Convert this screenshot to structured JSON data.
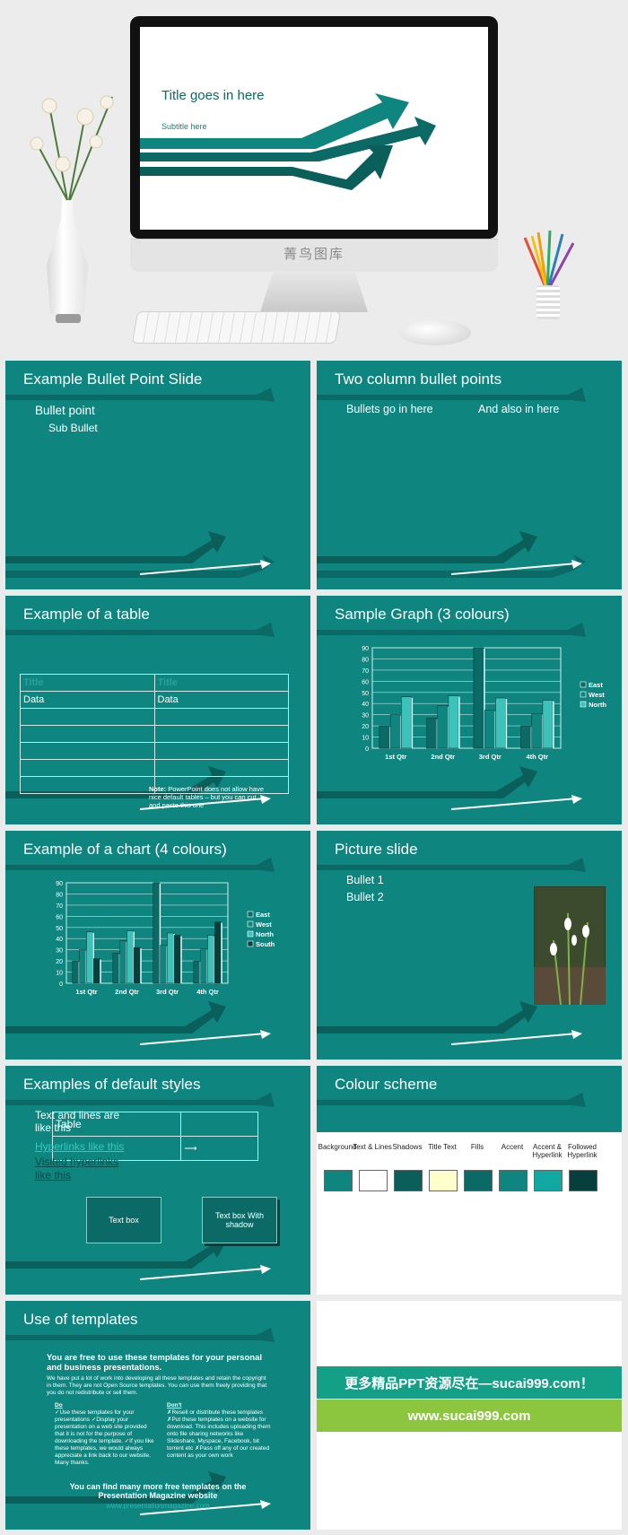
{
  "hero": {
    "screen_title": "Title goes in here",
    "screen_subtitle": "Subtitle here",
    "brand": "菁鸟图库"
  },
  "slides": {
    "s1": {
      "title": "Example Bullet Point Slide",
      "bullet": "Bullet point",
      "sub_bullet": "Sub Bullet"
    },
    "s2": {
      "title": "Two column bullet points",
      "left": "Bullets go in here",
      "right": "And also in here"
    },
    "s3": {
      "title": "Example of a table",
      "headers": [
        "Title",
        "Title"
      ],
      "rows": [
        [
          "Data",
          "Data"
        ],
        [
          "",
          ""
        ],
        [
          "",
          ""
        ],
        [
          "",
          ""
        ],
        [
          "",
          ""
        ],
        [
          "",
          ""
        ]
      ],
      "note_label": "Note:",
      "note_text": "PowerPoint does not allow have nice default tables – but you can cut and paste this one"
    },
    "s4": {
      "title": "Sample Graph (3 colours)"
    },
    "s5": {
      "title": "Example of a chart (4 colours)"
    },
    "s6": {
      "title": "Picture slide",
      "bullet1": "Bullet 1",
      "bullet2": "Bullet 2"
    },
    "s7": {
      "title": "Examples of default styles",
      "text_lines": "Text and lines are like this",
      "table_label": "Table",
      "hyperlink": "Hyperlinks like this",
      "visited": "Visited hyperlinks like this",
      "textbox": "Text box",
      "textbox_shadow": "Text box With shadow"
    },
    "s8": {
      "title": "Colour scheme",
      "labels": [
        "Background",
        "Text & Lines",
        "Shadows",
        "Title Text",
        "Fills",
        "Accent",
        "Accent & Hyperlink",
        "Followed Hyperlink"
      ],
      "colors": [
        "#0f857f",
        "#ffffff",
        "#0a5f5b",
        "#ffffcc",
        "#0b6a66",
        "#0f857f",
        "#12a8a2",
        "#063f3c"
      ]
    },
    "s9": {
      "title": "Use of templates",
      "intro": "You are free to use these templates for your personal and business presentations.",
      "body": "We have put a lot of work into developing all these templates and retain the copyright in them. They are not Open Source templates. You can use them freely providing that you do not redistribute or sell them.",
      "do_heading": "Do",
      "do_items": "✓Use these templates for your presentations ✓Display your presentation on a web site provided that it is not for the purpose of downloading the template. ✓If you like these templates, we would always appreciate a link back to our website. Many thanks.",
      "dont_heading": "Don't",
      "dont_items": "✗Resell or distribute these templates ✗Put these templates on a website for download. This includes uploading them onto file sharing networks like Slideshare, Myspace, Facebook, bit torrent etc ✗Pass off any of our created content as your own work",
      "footer": "You can find many more free templates on the Presentation Magazine website",
      "url": "www.presentationmagazine.com"
    },
    "promo": {
      "banner1": "更多精品PPT资源尽在—sucai999.com！",
      "banner2": "www.sucai999.com"
    }
  },
  "chart_data": [
    {
      "type": "bar",
      "categories": [
        "1st Qtr",
        "2nd Qtr",
        "3rd Qtr",
        "4th Qtr"
      ],
      "series": [
        {
          "name": "East",
          "values": [
            20,
            27,
            90,
            20
          ]
        },
        {
          "name": "West",
          "values": [
            30,
            38,
            34,
            31
          ]
        },
        {
          "name": "North",
          "values": [
            46,
            47,
            45,
            43
          ]
        }
      ],
      "ylim": [
        0,
        90
      ],
      "yticks": [
        0,
        10,
        20,
        30,
        40,
        50,
        60,
        70,
        80,
        90
      ],
      "colors": [
        "#0b6a66",
        "#0f857f",
        "#3cc2b8"
      ],
      "legend": "right"
    },
    {
      "type": "bar",
      "categories": [
        "1st Qtr",
        "2nd Qtr",
        "3rd Qtr",
        "4th Qtr"
      ],
      "series": [
        {
          "name": "East",
          "values": [
            20,
            27,
            90,
            20
          ]
        },
        {
          "name": "West",
          "values": [
            30,
            38,
            34,
            31
          ]
        },
        {
          "name": "North",
          "values": [
            46,
            47,
            45,
            43
          ]
        },
        {
          "name": "South",
          "values": [
            22,
            32,
            43,
            55
          ]
        }
      ],
      "ylim": [
        0,
        90
      ],
      "yticks": [
        0,
        10,
        20,
        30,
        40,
        50,
        60,
        70,
        80,
        90
      ],
      "colors": [
        "#0b6a66",
        "#0f857f",
        "#3cc2b8",
        "#063f3c"
      ],
      "legend": "right"
    }
  ]
}
